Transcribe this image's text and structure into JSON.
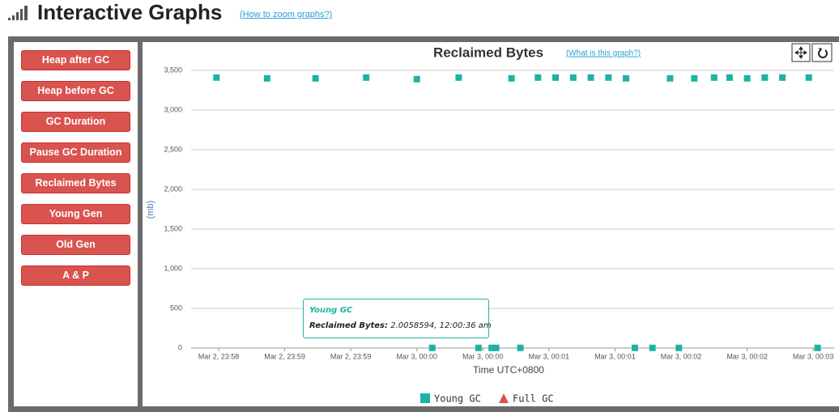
{
  "header": {
    "title": "Interactive Graphs",
    "link": "(How to zoom graphs?)"
  },
  "menu": [
    "Heap after GC",
    "Heap before GC",
    "GC Duration",
    "Pause GC Duration",
    "Reclaimed Bytes",
    "Young Gen",
    "Old Gen",
    "A & P"
  ],
  "chart_data": {
    "type": "scatter",
    "title": "Reclaimed Bytes",
    "link": "(What is this graph?)",
    "y_label": "(mb)",
    "x_label": "Time UTC+0800",
    "xlim": [
      -102.5,
      189.5
    ],
    "xticks": [
      {
        "value": -90,
        "label": "Mar 2, 23:58"
      },
      {
        "value": -60,
        "label": "Mar 2, 23:59"
      },
      {
        "value": -30,
        "label": "Mar 2, 23:59"
      },
      {
        "value": 0,
        "label": "Mar 3, 00:00"
      },
      {
        "value": 30,
        "label": "Mar 3, 00:00"
      },
      {
        "value": 60,
        "label": "Mar 3, 00:01"
      },
      {
        "value": 90,
        "label": "Mar 3, 00:01"
      },
      {
        "value": 120,
        "label": "Mar 3, 00:02"
      },
      {
        "value": 150,
        "label": "Mar 3, 00:02"
      },
      {
        "value": 180,
        "label": "Mar 3, 00:03"
      }
    ],
    "ylim": [
      0,
      3500
    ],
    "yticks": [
      0,
      500,
      {
        "value": 1000,
        "label": "1,000"
      },
      {
        "value": 1500,
        "label": "1,500"
      },
      {
        "value": 2000,
        "label": "2,000"
      },
      {
        "value": 2500,
        "label": "2,500"
      },
      {
        "value": 3000,
        "label": "3,000"
      },
      {
        "value": 3500,
        "label": "3,500"
      }
    ],
    "grid": true,
    "series": [
      {
        "name": "Young GC",
        "color": "#1db3a3",
        "marker": "square",
        "x": [
          -91,
          -68,
          -46,
          -23,
          0,
          7,
          19,
          28,
          34,
          36,
          43,
          47,
          55,
          63,
          71,
          79,
          87,
          95,
          99,
          107,
          115,
          119,
          126,
          135,
          142,
          150,
          158,
          166,
          178,
          182
        ],
        "values": [
          3410,
          3400,
          3400,
          3410,
          3390,
          2,
          3410,
          2,
          2,
          2.0058594,
          3400,
          2,
          3410,
          3410,
          3410,
          3410,
          3410,
          3400,
          2,
          2,
          3400,
          2,
          3400,
          3410,
          3410,
          3400,
          3410,
          3410,
          3410,
          2
        ]
      },
      {
        "name": "Full GC",
        "color": "#d9534f",
        "marker": "triangle",
        "x": [],
        "values": []
      }
    ],
    "tooltip": {
      "title": "Young GC",
      "label": "Reclaimed Bytes:",
      "text": "2.0058594, 12:00:36 am"
    }
  }
}
